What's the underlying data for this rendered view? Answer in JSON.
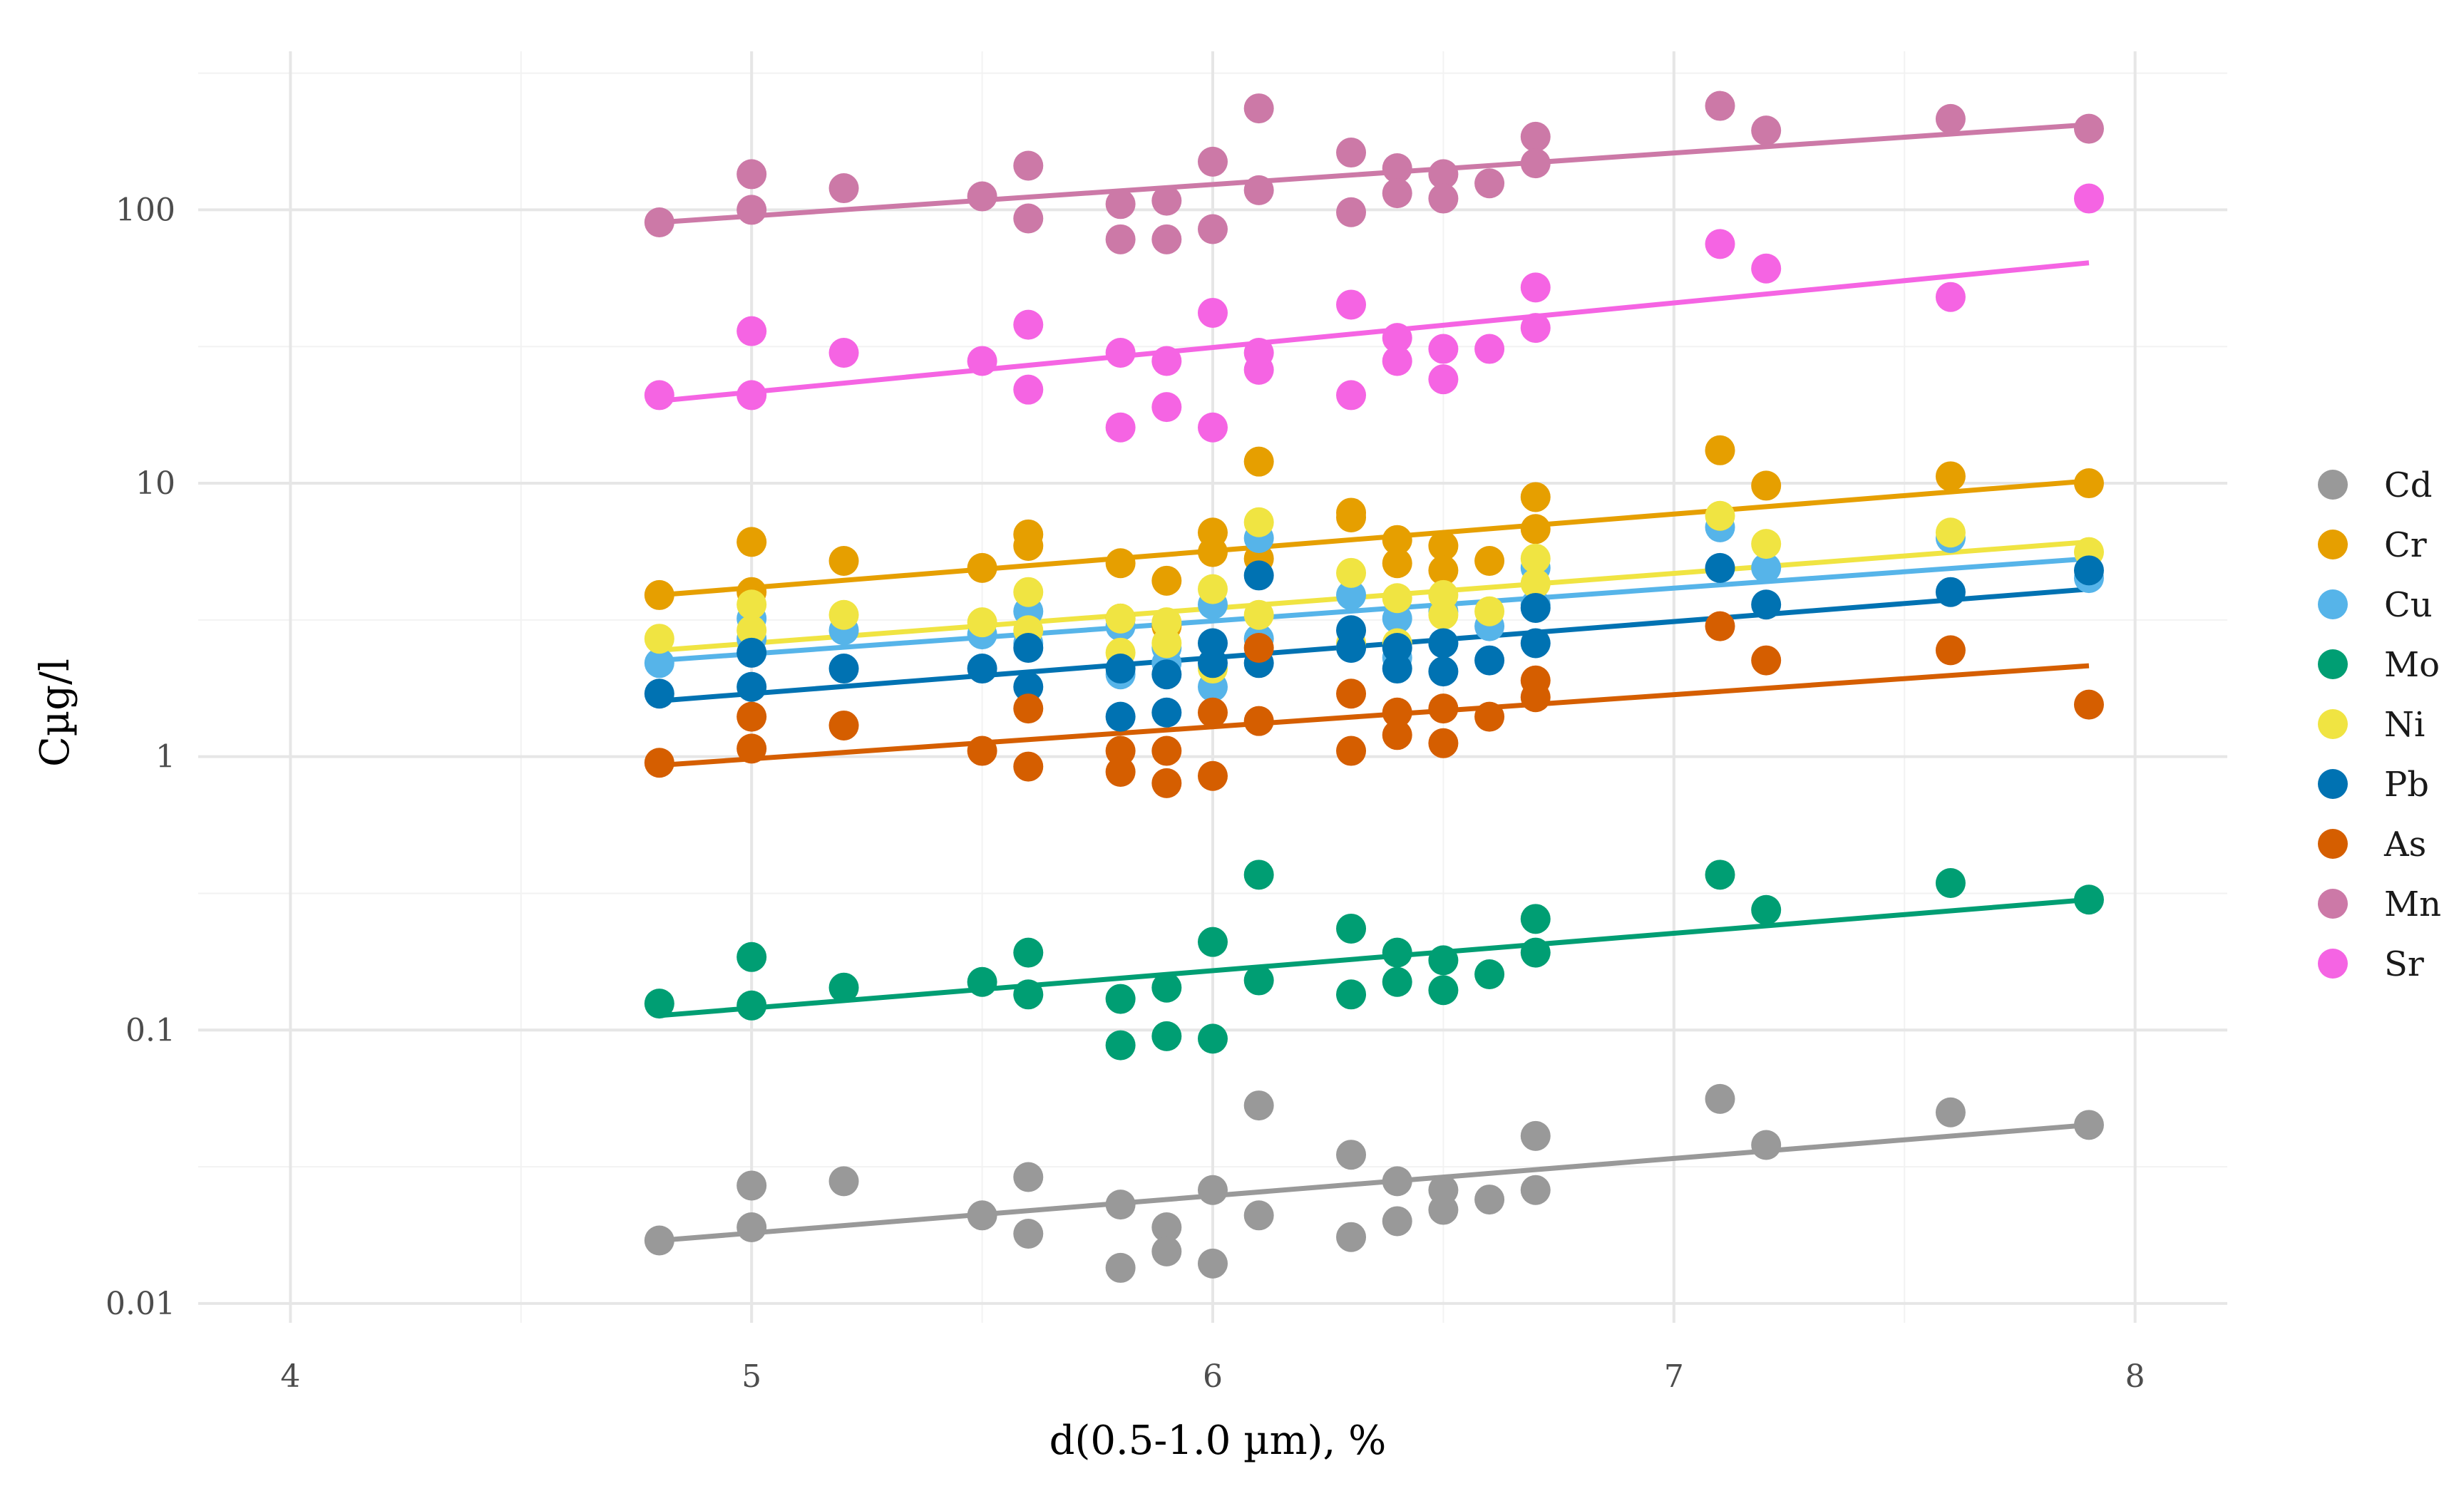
{
  "chart_data": {
    "type": "scatter",
    "title": "",
    "xlabel": "d(0.5-1.0 µm), %",
    "ylabel": "Cµg/l",
    "x_scale": "linear",
    "y_scale": "log10",
    "xlim": [
      3.8,
      8.2
    ],
    "ylim": [
      0.0085,
      380
    ],
    "x_ticks": [
      4,
      5,
      6,
      7,
      8
    ],
    "x_tick_labels": [
      "4",
      "5",
      "6",
      "7",
      "8"
    ],
    "y_ticks": [
      0.01,
      0.1,
      1,
      10,
      100
    ],
    "y_tick_labels": [
      "0.01",
      "0.1",
      "1",
      "10",
      "100"
    ],
    "grid": true,
    "legend_position": "right",
    "x": [
      4.8,
      5.0,
      5.0,
      5.2,
      5.5,
      5.6,
      5.6,
      5.8,
      5.8,
      5.9,
      5.9,
      6.0,
      6.0,
      6.1,
      6.1,
      6.3,
      6.3,
      6.4,
      6.4,
      6.5,
      6.5,
      6.6,
      6.7,
      6.7,
      7.1,
      7.2,
      7.6,
      7.9
    ],
    "series": [
      {
        "name": "Cd",
        "color": "#999999",
        "values": [
          0.017,
          0.019,
          0.027,
          0.028,
          0.021,
          0.029,
          0.018,
          0.023,
          0.0135,
          0.019,
          0.0155,
          0.026,
          0.014,
          0.053,
          0.021,
          0.035,
          0.0175,
          0.028,
          0.02,
          0.026,
          0.022,
          0.024,
          0.041,
          0.026,
          0.056,
          0.038,
          0.05,
          0.045
        ],
        "fit": [
          0.017,
          0.045
        ]
      },
      {
        "name": "Cr",
        "color": "#E69F00",
        "values": [
          3.9,
          6.1,
          4.0,
          5.2,
          4.9,
          6.5,
          5.9,
          5.1,
          3.2,
          4.4,
          3.0,
          6.6,
          5.6,
          12.0,
          5.3,
          7.5,
          7.8,
          6.2,
          5.1,
          5.9,
          4.8,
          5.2,
          8.9,
          6.8,
          13.2,
          9.8,
          10.6,
          10.0
        ],
        "fit": [
          3.9,
          10.2
        ]
      },
      {
        "name": "Cu",
        "color": "#56B4E9",
        "values": [
          2.2,
          3.2,
          2.7,
          2.9,
          2.8,
          3.4,
          2.6,
          2.0,
          3.0,
          2.2,
          2.5,
          3.6,
          1.8,
          6.3,
          2.7,
          3.9,
          2.5,
          3.2,
          2.3,
          3.4,
          2.6,
          3.0,
          4.9,
          3.6,
          6.9,
          4.9,
          6.3,
          4.5
        ],
        "fit": [
          2.25,
          5.3
        ]
      },
      {
        "name": "Mo",
        "color": "#009E73",
        "values": [
          0.125,
          0.185,
          0.123,
          0.143,
          0.15,
          0.192,
          0.135,
          0.13,
          0.088,
          0.143,
          0.095,
          0.21,
          0.093,
          0.37,
          0.152,
          0.235,
          0.135,
          0.192,
          0.15,
          0.18,
          0.14,
          0.16,
          0.255,
          0.192,
          0.37,
          0.275,
          0.345,
          0.3
        ],
        "fit": [
          0.113,
          0.3
        ]
      },
      {
        "name": "Ni",
        "color": "#F0E442",
        "values": [
          2.7,
          3.6,
          2.9,
          3.3,
          3.1,
          4.0,
          2.9,
          2.4,
          3.2,
          2.6,
          3.1,
          4.1,
          2.1,
          7.2,
          3.3,
          4.7,
          2.6,
          3.8,
          2.6,
          3.9,
          3.3,
          3.4,
          5.3,
          4.3,
          7.6,
          6.0,
          6.6,
          5.6
        ],
        "fit": [
          2.45,
          6.1
        ]
      },
      {
        "name": "Pb",
        "color": "#0072B2",
        "values": [
          1.7,
          1.8,
          2.4,
          2.1,
          2.1,
          2.5,
          1.8,
          2.1,
          1.4,
          2.0,
          1.45,
          2.6,
          2.2,
          4.6,
          2.2,
          2.9,
          2.5,
          2.5,
          2.1,
          2.6,
          2.05,
          2.25,
          3.5,
          2.6,
          4.9,
          3.6,
          4.0,
          4.8
        ],
        "fit": [
          1.6,
          4.1
        ]
      },
      {
        "name": "As",
        "color": "#D55E00",
        "values": [
          0.95,
          1.4,
          1.07,
          1.3,
          1.05,
          1.5,
          0.92,
          1.05,
          0.88,
          1.05,
          0.8,
          1.45,
          0.85,
          2.5,
          1.35,
          1.7,
          1.05,
          1.45,
          1.2,
          1.5,
          1.12,
          1.4,
          1.9,
          1.65,
          3.0,
          2.25,
          2.45,
          1.55
        ],
        "fit": [
          0.93,
          2.15
        ]
      },
      {
        "name": "Mn",
        "color": "#CC79A7",
        "values": [
          90,
          135,
          100,
          120,
          112,
          145,
          93,
          105,
          78,
          108,
          78,
          150,
          85,
          235,
          118,
          162,
          98,
          142,
          115,
          135,
          110,
          125,
          185,
          148,
          240,
          195,
          215,
          198
        ],
        "fit": [
          90,
          205
        ]
      },
      {
        "name": "Sr",
        "color": "#F564E3",
        "values": [
          21,
          36,
          21,
          30,
          28,
          38,
          22,
          30,
          16,
          28,
          19,
          42,
          16,
          26,
          30,
          45,
          21,
          34,
          28,
          31,
          24,
          31,
          52,
          37,
          75,
          61,
          48,
          110
        ],
        "fit": [
          20,
          64
        ]
      }
    ]
  }
}
